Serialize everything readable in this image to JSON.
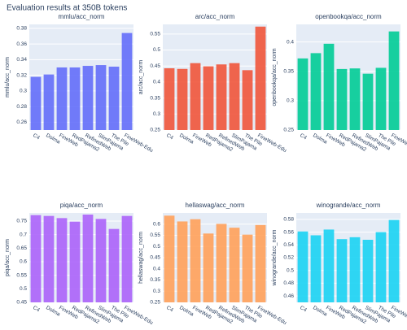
{
  "title": "Evaluation results at 350B tokens",
  "chart_data": [
    {
      "type": "bar",
      "title": "mmlu/acc_norm",
      "y_label": "mmlu/acc_norm",
      "color": "#636efa",
      "categories": [
        "C4",
        "Dolma",
        "FineWeb",
        "RedPajama2",
        "RefinedWeb",
        "SlimPajama",
        "The Pile",
        "FineWeb-Edu"
      ],
      "values": [
        0.318,
        0.321,
        0.33,
        0.33,
        0.332,
        0.333,
        0.331,
        0.374
      ],
      "ylim": [
        0.25,
        0.385
      ],
      "yticks": [
        0.26,
        0.28,
        0.3,
        0.32,
        0.34,
        0.36,
        0.38
      ],
      "grid": true
    },
    {
      "type": "bar",
      "title": "arc/acc_norm",
      "y_label": "arc/acc_norm",
      "color": "#ef553b",
      "categories": [
        "C4",
        "Dolma",
        "FineWeb",
        "RedPajama2",
        "RefinedWeb",
        "SlimPajama",
        "The Pile",
        "FineWeb-Edu"
      ],
      "values": [
        0.443,
        0.441,
        0.459,
        0.449,
        0.455,
        0.459,
        0.437,
        0.573
      ],
      "ylim": [
        0.25,
        0.58
      ],
      "yticks": [
        0.25,
        0.3,
        0.35,
        0.4,
        0.45,
        0.5,
        0.55
      ],
      "grid": true
    },
    {
      "type": "bar",
      "title": "openbookqa/acc_norm",
      "y_label": "openbookqa/acc_norm",
      "color": "#00cc96",
      "categories": [
        "C4",
        "Dolma",
        "FineWeb",
        "RedPajama2",
        "RefinedWeb",
        "SlimPajama",
        "The Pile",
        "FineWeb-Edu"
      ],
      "values": [
        0.372,
        0.381,
        0.397,
        0.354,
        0.355,
        0.346,
        0.356,
        0.418
      ],
      "ylim": [
        0.25,
        0.43
      ],
      "yticks": [
        0.25,
        0.3,
        0.35,
        0.4
      ],
      "grid": true
    },
    {
      "type": "bar",
      "title": "piqa/acc_norm",
      "y_label": "piqa/acc_norm",
      "color": "#ab63fa",
      "categories": [
        "C4",
        "Dolma",
        "FineWeb",
        "RedPajama2",
        "RefinedWeb",
        "SlimPajama",
        "The Pile",
        "FineWeb-Edu"
      ],
      "values": [
        0.772,
        0.769,
        0.761,
        0.748,
        0.774,
        0.758,
        0.721,
        0.769
      ],
      "ylim": [
        0.45,
        0.78
      ],
      "yticks": [
        0.45,
        0.5,
        0.55,
        0.6,
        0.65,
        0.7,
        0.75
      ],
      "grid": true
    },
    {
      "type": "bar",
      "title": "hellaswag/acc_norm",
      "y_label": "hellaswag/acc_norm",
      "color": "#ffa15a",
      "categories": [
        "C4",
        "Dolma",
        "FineWeb",
        "RedPajama2",
        "RefinedWeb",
        "SlimPajama",
        "The Pile",
        "FineWeb-Edu"
      ],
      "values": [
        0.638,
        0.612,
        0.622,
        0.558,
        0.601,
        0.584,
        0.553,
        0.596
      ],
      "ylim": [
        0.25,
        0.65
      ],
      "yticks": [
        0.25,
        0.3,
        0.35,
        0.4,
        0.45,
        0.5,
        0.55,
        0.6
      ],
      "grid": true
    },
    {
      "type": "bar",
      "title": "winogrande/acc_norm",
      "y_label": "winogrande/acc_norm",
      "color": "#19d3f3",
      "categories": [
        "C4",
        "Dolma",
        "FineWeb",
        "RedPajama2",
        "RefinedWeb",
        "SlimPajama",
        "The Pile",
        "FineWeb-Edu"
      ],
      "values": [
        0.561,
        0.555,
        0.564,
        0.549,
        0.552,
        0.548,
        0.56,
        0.579
      ],
      "ylim": [
        0.45,
        0.59
      ],
      "yticks": [
        0.46,
        0.48,
        0.5,
        0.52,
        0.54,
        0.56,
        0.58
      ],
      "grid": true
    }
  ]
}
